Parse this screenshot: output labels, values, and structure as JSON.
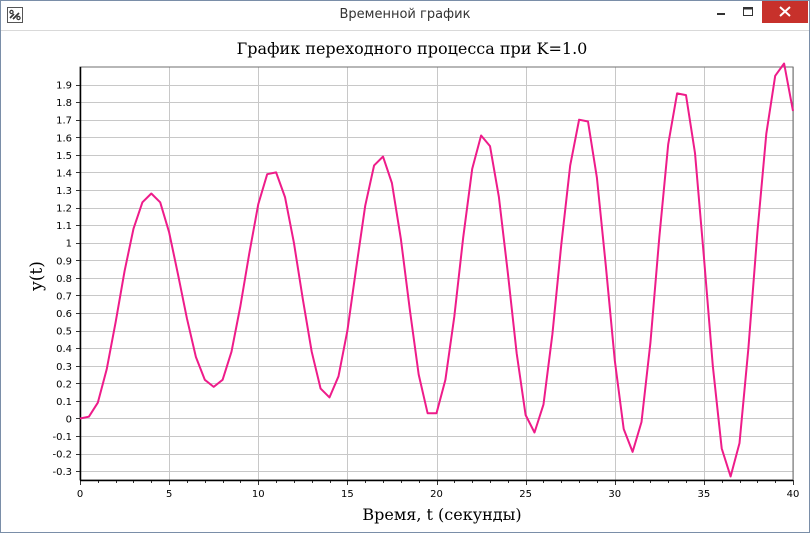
{
  "window": {
    "title": "Временной график",
    "app_icon": "link-icon",
    "controls": {
      "minimize_icon": "minimize-icon",
      "maximize_icon": "maximize-icon",
      "close_icon": "close-icon"
    }
  },
  "colors": {
    "series": "#ee1c8a",
    "grid": "#c8c8c8",
    "axis": "#000000",
    "close_button": "#c7312b"
  },
  "chart_data": {
    "type": "line",
    "title": "График переходного процесса при K=1.0",
    "xlabel": "Время, t (секунды)",
    "ylabel": "y(t)",
    "xlim": [
      0,
      40
    ],
    "ylim": [
      -0.35,
      2.0
    ],
    "x_ticks": [
      0,
      5,
      10,
      15,
      20,
      25,
      30,
      35,
      40
    ],
    "x_tick_labels": [
      "0",
      "5",
      "10",
      "15",
      "20",
      "25",
      "30",
      "35",
      "40"
    ],
    "x_minor_step": 1,
    "y_ticks": [
      -0.3,
      -0.2,
      -0.1,
      0,
      0.1,
      0.2,
      0.3,
      0.4,
      0.5,
      0.6,
      0.7,
      0.8,
      0.9,
      1,
      1.1,
      1.2,
      1.3,
      1.4,
      1.5,
      1.6,
      1.7,
      1.8,
      1.9
    ],
    "y_tick_labels": [
      "-0.3",
      "-0.2",
      "-0.1",
      "0",
      "0.1",
      "0.2",
      "0.3",
      "0.4",
      "0.5",
      "0.6",
      "0.7",
      "0.8",
      "0.9",
      "1",
      "1.1",
      "1.2",
      "1.3",
      "1.4",
      "1.5",
      "1.6",
      "1.7",
      "1.8",
      "1.9"
    ],
    "grid": true,
    "series": [
      {
        "color": "#ee1c8a",
        "x": [
          0,
          0.5,
          1,
          1.5,
          2,
          2.5,
          3,
          3.5,
          4,
          4.5,
          5,
          5.5,
          6,
          6.5,
          7,
          7.5,
          8,
          8.5,
          9,
          9.5,
          10,
          10.5,
          11,
          11.5,
          12,
          12.5,
          13,
          13.5,
          14,
          14.5,
          15,
          15.5,
          16,
          16.5,
          17,
          17.5,
          18,
          18.5,
          19,
          19.5,
          20,
          20.5,
          21,
          21.5,
          22,
          22.5,
          23,
          23.5,
          24,
          24.5,
          25,
          25.5,
          26,
          26.5,
          27,
          27.5,
          28,
          28.5,
          29,
          29.5,
          30,
          30.5,
          31,
          31.5,
          32,
          32.5,
          33,
          33.5,
          34,
          34.5,
          35,
          35.5,
          36,
          36.5,
          37,
          37.5,
          38,
          38.5,
          39,
          39.5,
          40
        ],
        "y": [
          0,
          0.01,
          0.09,
          0.28,
          0.55,
          0.84,
          1.08,
          1.23,
          1.28,
          1.23,
          1.06,
          0.82,
          0.57,
          0.35,
          0.22,
          0.18,
          0.22,
          0.38,
          0.64,
          0.94,
          1.22,
          1.39,
          1.4,
          1.26,
          1.0,
          0.68,
          0.38,
          0.17,
          0.12,
          0.24,
          0.5,
          0.86,
          1.21,
          1.44,
          1.49,
          1.34,
          1.02,
          0.62,
          0.25,
          0.03,
          0.03,
          0.22,
          0.58,
          1.03,
          1.42,
          1.61,
          1.55,
          1.26,
          0.83,
          0.37,
          0.02,
          -0.08,
          0.08,
          0.48,
          0.99,
          1.44,
          1.7,
          1.69,
          1.37,
          0.87,
          0.33,
          -0.06,
          -0.19,
          -0.02,
          0.43,
          1.03,
          1.56,
          1.85,
          1.84,
          1.51,
          0.92,
          0.3,
          -0.17,
          -0.33,
          -0.14,
          0.4,
          1.06,
          1.62,
          1.95,
          2.02,
          1.75
        ]
      }
    ]
  }
}
